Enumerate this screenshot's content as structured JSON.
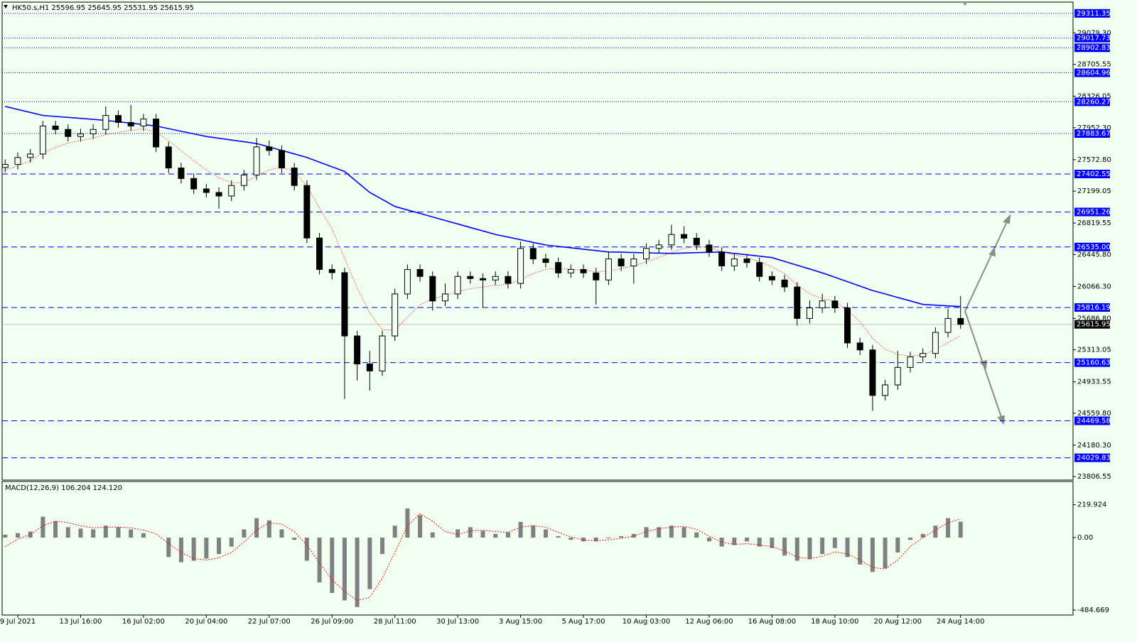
{
  "chart_data": [
    {
      "type": "candlestick",
      "title": "HK50.s,H1  25596.95 25645.95 25531.95 25615.95",
      "categories": [
        null,
        "9 Jul 2021",
        null,
        null,
        null,
        null,
        "13 Jul 16:00",
        null,
        null,
        null,
        null,
        "16 Jul 02:00",
        null,
        null,
        null,
        null,
        "20 Jul 04:00",
        null,
        null,
        null,
        null,
        "22 Jul 07:00",
        null,
        null,
        null,
        null,
        "26 Jul 09:00",
        null,
        null,
        null,
        null,
        "28 Jul 11:00",
        null,
        null,
        null,
        null,
        "30 Jul 13:00",
        null,
        null,
        null,
        null,
        "3 Aug 15:00",
        null,
        null,
        null,
        null,
        "5 Aug 17:00",
        null,
        null,
        null,
        null,
        "10 Aug 03:00",
        null,
        null,
        null,
        null,
        "12 Aug 06:00",
        null,
        null,
        null,
        null,
        "16 Aug 08:00",
        null,
        null,
        null,
        null,
        "18 Aug 10:00",
        null,
        null,
        null,
        null,
        "20 Aug 12:00",
        null,
        null,
        null,
        null,
        "24 Aug 14:00"
      ],
      "open": [
        27480,
        27516,
        27599,
        27640,
        27973,
        27932,
        27848,
        27880,
        27932,
        28098,
        28015,
        27973,
        28056,
        27724,
        27474,
        27349,
        27225,
        27183,
        27141,
        27266,
        27391,
        27724,
        27682,
        27474,
        27266,
        26642,
        26268,
        26230,
        25478,
        25145,
        25062,
        25478,
        25977,
        26268,
        26185,
        25894,
        25977,
        26185,
        26160,
        26143,
        26185,
        26102,
        26518,
        26393,
        26351,
        26227,
        26268,
        26227,
        26143,
        26393,
        26310,
        26393,
        26518,
        26560,
        26684,
        26640,
        26559,
        26476,
        26310,
        26393,
        26350,
        26185,
        26143,
        26060,
        25686,
        25811,
        25894,
        25811,
        25395,
        25312,
        24771,
        24896,
        25104,
        25229,
        25270,
        25520,
        25686
      ],
      "high": [
        27576,
        27659,
        27700,
        28033,
        28033,
        27992,
        27940,
        27992,
        28206,
        28158,
        28223,
        28116,
        28116,
        27784,
        27534,
        27409,
        27285,
        27243,
        27326,
        27451,
        27830,
        27800,
        27742,
        27534,
        27326,
        26702,
        26328,
        26290,
        25538,
        25300,
        25538,
        26037,
        26328,
        26328,
        26245,
        26100,
        26245,
        26245,
        26220,
        26245,
        26245,
        26600,
        26578,
        26453,
        26411,
        26328,
        26328,
        26287,
        26480,
        26453,
        26453,
        26578,
        26620,
        26800,
        26780,
        26700,
        26619,
        26536,
        26453,
        26453,
        26410,
        26245,
        26203,
        26120,
        25900,
        25980,
        25954,
        25871,
        25455,
        25372,
        24956,
        25300,
        25289,
        25330,
        25580,
        25800,
        25952
      ],
      "low": [
        27420,
        27456,
        27539,
        27580,
        27872,
        27788,
        27788,
        27820,
        27872,
        27955,
        27913,
        27913,
        27664,
        27414,
        27289,
        27165,
        27123,
        26990,
        27081,
        27206,
        27331,
        27622,
        27414,
        27206,
        26582,
        26208,
        26150,
        24729,
        24950,
        24829,
        25002,
        25418,
        25917,
        26125,
        25780,
        25834,
        25917,
        26100,
        25811,
        26083,
        26042,
        26042,
        26333,
        26291,
        26167,
        26167,
        26167,
        25850,
        26083,
        26250,
        26100,
        26333,
        26458,
        26500,
        26580,
        26499,
        26416,
        26250,
        26250,
        26290,
        26125,
        26083,
        26000,
        25600,
        25626,
        25751,
        25751,
        25335,
        25252,
        24588,
        24711,
        24836,
        25044,
        25169,
        25210,
        25460,
        25561
      ],
      "close": [
        27516,
        27599,
        27640,
        27973,
        27932,
        27848,
        27880,
        27932,
        28098,
        28015,
        27973,
        28056,
        27724,
        27474,
        27349,
        27225,
        27183,
        27141,
        27266,
        27391,
        27724,
        27682,
        27474,
        27266,
        26642,
        26268,
        26230,
        25478,
        25145,
        25062,
        25478,
        25977,
        26268,
        26185,
        25894,
        25977,
        26185,
        26160,
        26143,
        26185,
        26102,
        26518,
        26393,
        26351,
        26227,
        26268,
        26227,
        26143,
        26393,
        26310,
        26393,
        26518,
        26560,
        26684,
        26640,
        26559,
        26476,
        26310,
        26393,
        26350,
        26185,
        26143,
        26060,
        25686,
        25811,
        25894,
        25811,
        25395,
        25312,
        24771,
        24896,
        25104,
        25229,
        25270,
        25520,
        25686,
        25615.95
      ],
      "up_color": "#f0fff0",
      "down_color": "#000000",
      "wick_color": "#000000",
      "lines": [
        {
          "color": "#0000ff",
          "style": "solid",
          "values": [
            28206,
            28170,
            28134,
            28098,
            28086,
            28075,
            28063,
            28052,
            28040,
            28023,
            28007,
            27990,
            27973,
            27942,
            27910,
            27879,
            27848,
            27827,
            27806,
            27786,
            27765,
            27724,
            27682,
            27641,
            27599,
            27543,
            27488,
            27432,
            27308,
            27183,
            27100,
            27017,
            26975,
            26934,
            26892,
            26850,
            26809,
            26767,
            26726,
            26684,
            26653,
            26622,
            26590,
            26559,
            26542,
            26526,
            26509,
            26493,
            26476,
            26473,
            26469,
            26466,
            26462,
            26459,
            26463,
            26468,
            26472,
            26476,
            26459,
            26443,
            26426,
            26409,
            26364,
            26318,
            26273,
            26227,
            26175,
            26123,
            26070,
            26018,
            25977,
            25935,
            25894,
            25852,
            25844,
            25835,
            25827
          ]
        },
        {
          "color": "#ff0000",
          "style": "dot",
          "values": [
            27450,
            27500,
            27560,
            27650,
            27720,
            27770,
            27800,
            27830,
            27870,
            27900,
            27920,
            27940,
            27900,
            27800,
            27680,
            27560,
            27450,
            27360,
            27300,
            27300,
            27380,
            27450,
            27480,
            27440,
            27250,
            27000,
            26750,
            26400,
            26050,
            25750,
            25550,
            25550,
            25700,
            25850,
            25920,
            25960,
            26000,
            26040,
            26060,
            26080,
            26090,
            26150,
            26220,
            26270,
            26280,
            26270,
            26260,
            26240,
            26250,
            26280,
            26310,
            26360,
            26410,
            26470,
            26520,
            26540,
            26530,
            26480,
            26440,
            26410,
            26360,
            26300,
            26220,
            26080,
            25980,
            25920,
            25890,
            25780,
            25650,
            25450,
            25320,
            25260,
            25240,
            25250,
            25320,
            25400,
            25480
          ]
        }
      ],
      "levels": [
        {
          "value": 29311.35,
          "style": "dot"
        },
        {
          "value": 29017.73,
          "style": "dot"
        },
        {
          "value": 28902.83,
          "style": "dot"
        },
        {
          "value": 28604.96,
          "style": "dot"
        },
        {
          "value": 28260.27,
          "style": "dot"
        },
        {
          "value": 27883.67,
          "style": "dot"
        },
        {
          "value": 27402.55,
          "style": "dash"
        },
        {
          "value": 26951.26,
          "style": "dash"
        },
        {
          "value": 26535,
          "label": "26535.00",
          "style": "dash"
        },
        {
          "value": 25816.19,
          "style": "dash"
        },
        {
          "value": 25160.63,
          "style": "dash"
        },
        {
          "value": 24469.58,
          "style": "dash"
        },
        {
          "value": 24029.83,
          "style": "dash"
        }
      ],
      "level_color": "#0000ff",
      "last": 25615.95,
      "ylim": [
        23765,
        29445
      ],
      "yticks": [
        {
          "value": 29079.3,
          "label": "29079.30"
        },
        28705.55,
        28326.05,
        {
          "value": 27952.3,
          "label": "27952.30"
        },
        {
          "value": 27572.8,
          "label": "27572.80"
        },
        27199.05,
        26819.55,
        {
          "value": 26445.8,
          "label": "26445.80"
        },
        {
          "value": 26066.3,
          "label": "26066.30"
        },
        {
          "value": 25686.8,
          "label": "25686.80"
        },
        25313.05,
        24933.55,
        {
          "value": 24559.8,
          "label": "24559.80"
        },
        {
          "value": 24180.3,
          "label": "24180.30"
        },
        23806.55
      ]
    },
    {
      "type": "macd",
      "title": "MACD(12,26,9) 106.204 124.120",
      "histogram": [
        20,
        30,
        40,
        140,
        110,
        70,
        60,
        55,
        80,
        70,
        55,
        30,
        0,
        -130,
        -165,
        -155,
        -140,
        -110,
        -60,
        55,
        130,
        115,
        55,
        -15,
        -155,
        -300,
        -370,
        -420,
        -465,
        -345,
        -110,
        80,
        195,
        150,
        35,
        0,
        55,
        70,
        45,
        25,
        35,
        105,
        80,
        55,
        10,
        -15,
        -25,
        -25,
        -5,
        10,
        25,
        70,
        70,
        80,
        70,
        35,
        -25,
        -60,
        -50,
        -25,
        -60,
        -70,
        -120,
        -155,
        -145,
        -110,
        -70,
        -130,
        -180,
        -230,
        -205,
        -100,
        -15,
        25,
        80,
        130,
        106.204
      ],
      "signal": [
        -60,
        -10,
        20,
        80,
        110,
        100,
        80,
        65,
        70,
        70,
        65,
        50,
        25,
        -40,
        -100,
        -140,
        -150,
        -135,
        -100,
        -30,
        50,
        100,
        90,
        40,
        -50,
        -170,
        -280,
        -360,
        -420,
        -400,
        -270,
        -100,
        80,
        160,
        110,
        40,
        20,
        45,
        50,
        40,
        35,
        70,
        80,
        70,
        35,
        5,
        -15,
        -20,
        -15,
        -5,
        10,
        40,
        60,
        70,
        75,
        55,
        10,
        -30,
        -45,
        -40,
        -50,
        -60,
        -90,
        -130,
        -140,
        -125,
        -95,
        -110,
        -150,
        -200,
        -210,
        -150,
        -60,
        0,
        50,
        100,
        124.12
      ],
      "histogram_color": "#808080",
      "signal_color": "#ff0000",
      "ylim": [
        -518,
        366
      ],
      "yticks": [
        219.924,
        {
          "value": 0,
          "label": "0.00"
        },
        -484.669
      ]
    }
  ]
}
